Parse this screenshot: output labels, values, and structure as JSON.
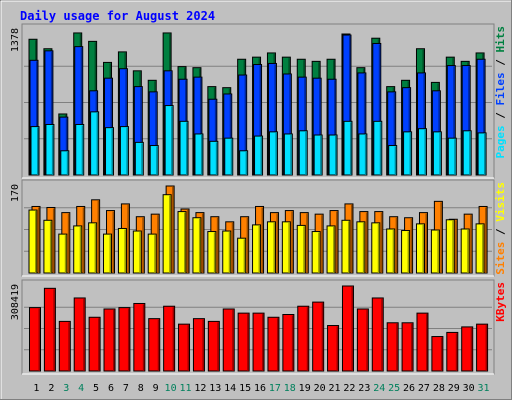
{
  "colors": {
    "background": "#c0c0c0",
    "title": "#0000ff",
    "grid": "#808080",
    "hits": "#008040",
    "files": "#0040ff",
    "pages": "#00e0ff",
    "visits": "#ffff00",
    "sites": "#ff8000",
    "kbytes": "#ff0000",
    "weekend_label": "#00805c",
    "weekday_label": "#000000"
  },
  "chart_data": {
    "type": "bar",
    "title": "Daily usage for August 2024",
    "categories": [
      "1",
      "2",
      "3",
      "4",
      "5",
      "6",
      "7",
      "8",
      "9",
      "10",
      "11",
      "12",
      "13",
      "14",
      "15",
      "16",
      "17",
      "18",
      "19",
      "20",
      "21",
      "22",
      "23",
      "24",
      "25",
      "26",
      "27",
      "28",
      "29",
      "30",
      "31"
    ],
    "weekend_days": [
      "3",
      "4",
      "10",
      "11",
      "17",
      "18",
      "24",
      "25",
      "31"
    ],
    "panels": [
      {
        "name": "requests",
        "ymax_label": "1378",
        "ymax": 1378,
        "axis_label": {
          "parts": [
            "Pages",
            "Files",
            "Hits"
          ],
          "separator": " / "
        },
        "series": [
          {
            "name": "Hits",
            "color_key": "hits",
            "values": [
              1290,
              1200,
              580,
              1350,
              1270,
              1070,
              1170,
              990,
              900,
              1350,
              1030,
              1020,
              840,
              830,
              1100,
              1120,
              1160,
              1120,
              1100,
              1080,
              1100,
              1340,
              1020,
              1300,
              840,
              900,
              1200,
              880,
              1120,
              1080,
              1160
            ]
          },
          {
            "name": "Files",
            "color_key": "files",
            "values": [
              1090,
              1180,
              550,
              1220,
              800,
              920,
              1010,
              840,
              790,
              990,
              910,
              930,
              720,
              770,
              950,
              1050,
              1060,
              960,
              930,
              920,
              910,
              1330,
              970,
              1250,
              790,
              830,
              970,
              800,
              1040,
              1040,
              1100
            ]
          },
          {
            "name": "Pages",
            "color_key": "pages",
            "values": [
              460,
              480,
              230,
              480,
              600,
              450,
              460,
              310,
              280,
              660,
              510,
              390,
              320,
              350,
              230,
              370,
              410,
              390,
              420,
              380,
              380,
              510,
              390,
              510,
              280,
              410,
              440,
              410,
              350,
              420,
              400
            ]
          }
        ]
      },
      {
        "name": "visits",
        "ymax_label": "170",
        "ymax": 170,
        "axis_label": {
          "parts": [
            "Sites",
            "Visits"
          ],
          "separator": " / "
        },
        "series": [
          {
            "name": "Sites",
            "color_key": "sites",
            "values": [
              130,
              128,
              118,
              130,
              143,
              122,
              135,
              110,
              115,
              170,
              125,
              118,
              110,
              100,
              110,
              130,
              118,
              122,
              118,
              115,
              122,
              135,
              120,
              120,
              110,
              108,
              118,
              140,
              105,
              115,
              130
            ]
          },
          {
            "name": "Visits",
            "color_key": "visits",
            "values": [
              123,
              103,
              76,
              92,
              98,
              76,
              87,
              82,
              76,
              153,
              120,
              108,
              81,
              82,
              68,
              94,
              100,
              100,
              93,
              81,
              92,
              103,
              100,
              98,
              86,
              83,
              96,
              84,
              104,
              86,
              96
            ]
          }
        ]
      },
      {
        "name": "kbytes",
        "ymax_label": "308419",
        "ymax": 308419,
        "axis_label": {
          "parts": [
            "KBytes"
          ],
          "separator": ""
        },
        "series": [
          {
            "name": "KBytes",
            "color_key": "kbytes",
            "values": [
              230000,
              300000,
              180000,
              265000,
              195000,
              225000,
              230000,
              245000,
              190000,
              235000,
              170000,
              190000,
              180000,
              225000,
              210000,
              210000,
              195000,
              205000,
              235000,
              250000,
              165000,
              308419,
              225000,
              265000,
              175000,
              175000,
              210000,
              125000,
              140000,
              160000,
              170000
            ]
          }
        ]
      }
    ]
  }
}
